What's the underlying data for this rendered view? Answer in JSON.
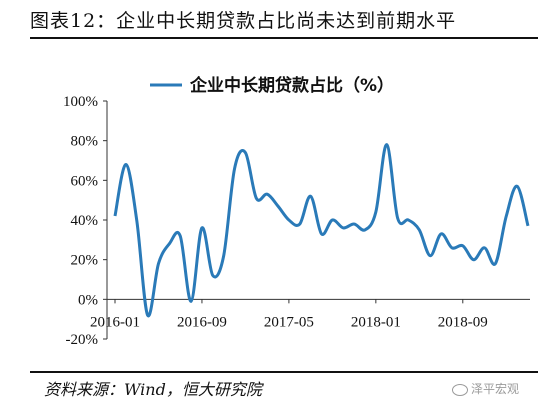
{
  "figure": {
    "title": "图表12：企业中长期贷款占比尚未达到前期水平",
    "source": "资料来源：Wind，恒大研究院",
    "watermark": "泽平宏观"
  },
  "chart_data": {
    "type": "line",
    "title": "",
    "xlabel": "",
    "ylabel": "",
    "ylim": [
      -20,
      100
    ],
    "y_ticks": [
      "-20%",
      "0%",
      "20%",
      "40%",
      "60%",
      "80%",
      "100%"
    ],
    "x_ticks": [
      "2016-01",
      "2016-09",
      "2017-05",
      "2018-01",
      "2018-09"
    ],
    "legend_position": "top-center",
    "grid": false,
    "color": "#2a7ab8",
    "series": [
      {
        "name": "企业中长期贷款占比（%）",
        "x": [
          "2016-01",
          "2016-02",
          "2016-03",
          "2016-04",
          "2016-05",
          "2016-06",
          "2016-07",
          "2016-08",
          "2016-09",
          "2016-10",
          "2016-11",
          "2016-12",
          "2017-01",
          "2017-02",
          "2017-03",
          "2017-04",
          "2017-05",
          "2017-06",
          "2017-07",
          "2017-08",
          "2017-09",
          "2017-10",
          "2017-11",
          "2017-12",
          "2018-01",
          "2018-02",
          "2018-03",
          "2018-04",
          "2018-05",
          "2018-06",
          "2018-07",
          "2018-08",
          "2018-09",
          "2018-10",
          "2018-11",
          "2018-12",
          "2019-01",
          "2019-02",
          "2019-03"
        ],
        "values": [
          42,
          68,
          40,
          -8,
          18,
          28,
          32,
          -1,
          36,
          12,
          22,
          66,
          74,
          51,
          53,
          47,
          40,
          38,
          52,
          33,
          40,
          36,
          38,
          35,
          44,
          78,
          41,
          40,
          35,
          22,
          33,
          26,
          27,
          20,
          26,
          18,
          42,
          57,
          37
        ]
      }
    ]
  }
}
